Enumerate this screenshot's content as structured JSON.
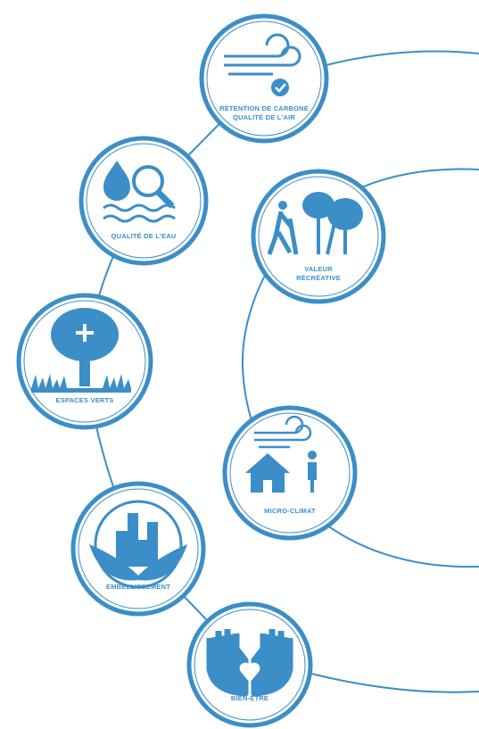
{
  "nodes": [
    {
      "label": [
        "RÉTENTION DE CARBONE",
        "QUALITÉ DE L'AIR"
      ]
    },
    {
      "label": [
        "QUALITÉ DE L'EAU"
      ]
    },
    {
      "label": [
        "VALEUR",
        "RÉCRÉATIVE"
      ]
    },
    {
      "label": [
        "ESPACES VERTS"
      ]
    },
    {
      "label": [
        "MICRO-CLIMAT"
      ]
    },
    {
      "label": [
        "EMBELLISSEMENT"
      ]
    },
    {
      "label": [
        "BIEN-ÊTRE"
      ]
    }
  ]
}
